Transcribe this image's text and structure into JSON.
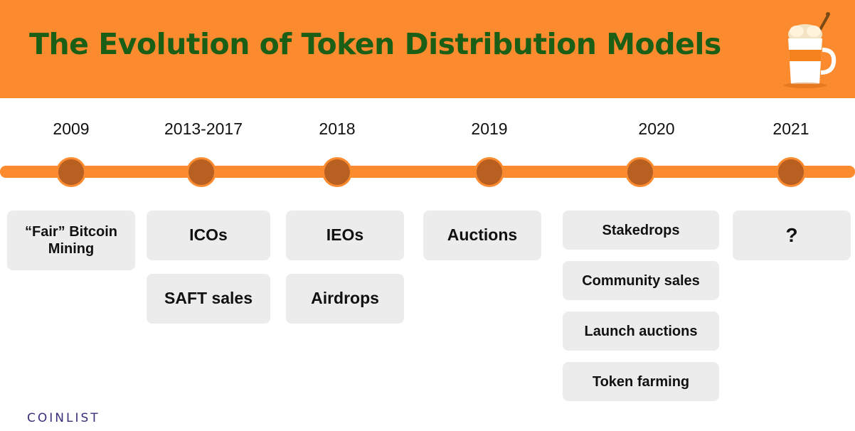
{
  "title": "The Evolution of Token Distribution Models",
  "logo_icon": "coffee-cup-icon",
  "colors": {
    "header": "#fb8b2e",
    "title": "#1b5e16",
    "dot": "#b85f22",
    "box": "#ececec",
    "brand": "#3a2f7a"
  },
  "timeline": [
    {
      "year": "2009",
      "items": [
        "“Fair” Bitcoin Mining"
      ]
    },
    {
      "year": "2013-2017",
      "items": [
        "ICOs",
        "SAFT sales"
      ]
    },
    {
      "year": "2018",
      "items": [
        "IEOs",
        "Airdrops"
      ]
    },
    {
      "year": "2019",
      "items": [
        "Auctions"
      ]
    },
    {
      "year": "2020",
      "items": [
        "Stakedrops",
        "Community sales",
        "Launch auctions",
        "Token farming"
      ]
    },
    {
      "year": "2021",
      "items": [
        "?"
      ]
    }
  ],
  "brand": "COINLIST"
}
